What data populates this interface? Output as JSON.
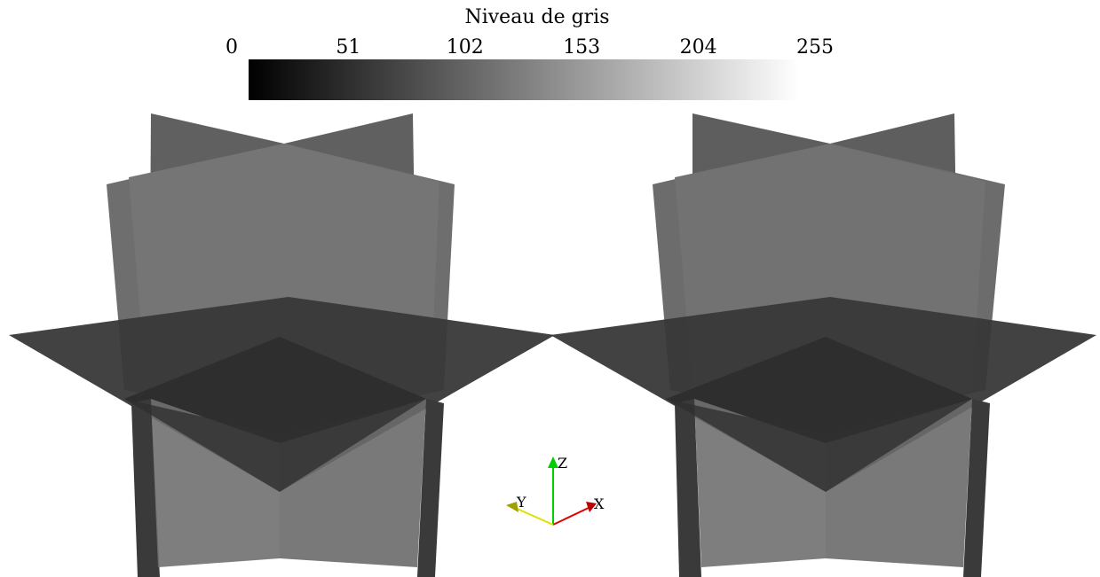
{
  "colorbar": {
    "title": "Niveau de gris",
    "range": [
      0,
      255
    ],
    "ticks": [
      0,
      51,
      102,
      153,
      204,
      255
    ]
  },
  "axes_triad": {
    "z": "Z",
    "y": "Y",
    "x": "X"
  }
}
